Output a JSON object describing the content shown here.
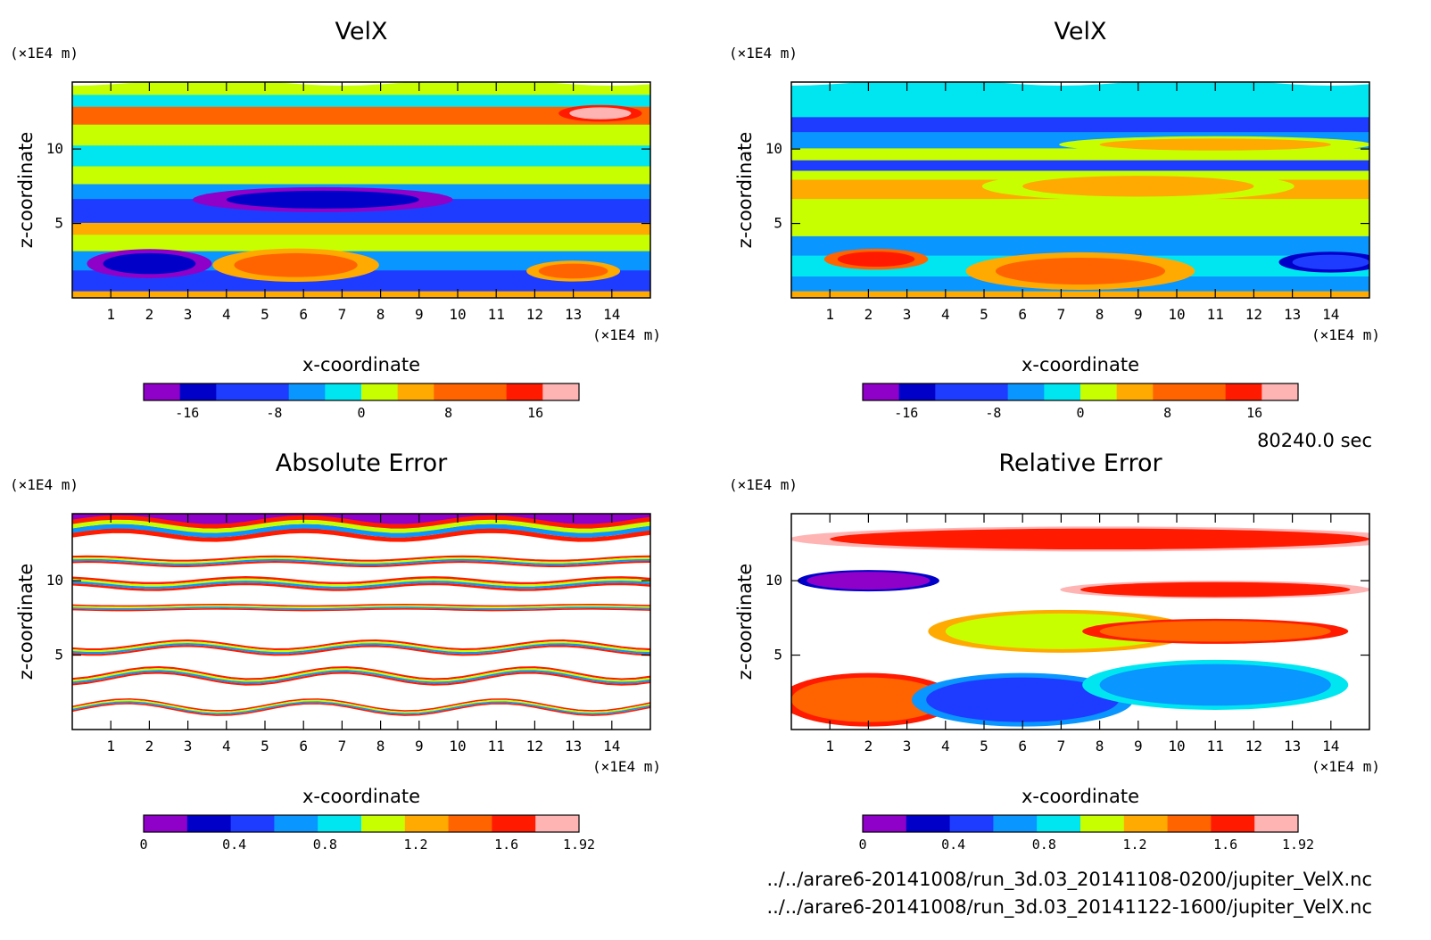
{
  "figure": {
    "time_label": "80240.0 sec",
    "files": [
      "../../arare6-20141008/run_3d.03_20141108-0200/jupiter_VelX.nc",
      "../../arare6-20141008/run_3d.03_20141122-1600/jupiter_VelX.nc"
    ]
  },
  "chart_data": [
    {
      "type": "heatmap",
      "title": "VelX",
      "xlabel": "x-coordinate",
      "ylabel": "z-coordinate",
      "x_unit": "(×1E4 m)",
      "y_unit": "(×1E4 m)",
      "xlim": [
        0,
        15
      ],
      "ylim": [
        0,
        14.5
      ],
      "xticks": [
        "1",
        "2",
        "3",
        "4",
        "5",
        "6",
        "7",
        "8",
        "9",
        "10",
        "11",
        "12",
        "13",
        "14"
      ],
      "yticks": [
        "5",
        "10"
      ],
      "colorbar": {
        "levels": 12,
        "tick_labels": [
          "-16",
          "-8",
          "0",
          "8",
          "16"
        ],
        "tick_values": [
          -16,
          -8,
          0,
          8,
          16
        ],
        "range": [
          -20,
          20
        ],
        "colors": [
          "#8f00c8",
          "#0000c8",
          "#1e3cff",
          "#0a96ff",
          "#00e6f0",
          "#c8ff00",
          "#ffaa00",
          "#ff6400",
          "#ff1a00",
          "#ffb4b4"
        ]
      },
      "bands": [
        {
          "z": [
            0,
            0.8
          ],
          "level": 6
        },
        {
          "z": [
            0.8,
            2.2
          ],
          "level": 2
        },
        {
          "z": [
            2.2,
            3.5
          ],
          "level": 3
        },
        {
          "z": [
            3.5,
            4.6
          ],
          "level": 5
        },
        {
          "z": [
            4.6,
            5.4
          ],
          "level": 6
        },
        {
          "z": [
            5.4,
            7
          ],
          "level": 2
        },
        {
          "z": [
            7,
            8
          ],
          "level": 3
        },
        {
          "z": [
            8,
            9.2
          ],
          "level": 5
        },
        {
          "z": [
            9.2,
            10.6
          ],
          "level": 4
        },
        {
          "z": [
            10.6,
            12
          ],
          "level": 5
        },
        {
          "z": [
            12,
            13.2
          ],
          "level": 7
        },
        {
          "z": [
            13.2,
            14
          ],
          "level": 4
        },
        {
          "z": [
            14,
            14.5
          ],
          "level": 5
        }
      ],
      "blobs": [
        {
          "x": 2,
          "z": 2.3,
          "rx": 1.2,
          "rz": 0.7,
          "level": 1
        },
        {
          "x": 5.8,
          "z": 2.2,
          "rx": 1.6,
          "rz": 0.8,
          "level": 7
        },
        {
          "x": 13,
          "z": 1.8,
          "rx": 0.9,
          "rz": 0.5,
          "level": 7
        },
        {
          "x": 13.7,
          "z": 12.4,
          "rx": 0.8,
          "rz": 0.4,
          "level": 9
        },
        {
          "x": 6.5,
          "z": 6.6,
          "rx": 2.5,
          "rz": 0.6,
          "level": 1
        }
      ]
    },
    {
      "type": "heatmap",
      "title": "VelX",
      "xlabel": "x-coordinate",
      "ylabel": "z-coordinate",
      "x_unit": "(×1E4 m)",
      "y_unit": "(×1E4 m)",
      "xlim": [
        0,
        15
      ],
      "ylim": [
        0,
        14.5
      ],
      "xticks": [
        "1",
        "2",
        "3",
        "4",
        "5",
        "6",
        "7",
        "8",
        "9",
        "10",
        "11",
        "12",
        "13",
        "14"
      ],
      "yticks": [
        "5",
        "10"
      ],
      "colorbar": {
        "levels": 12,
        "tick_labels": [
          "-16",
          "-8",
          "0",
          "8",
          "16"
        ],
        "tick_values": [
          -16,
          -8,
          0,
          8,
          16
        ],
        "range": [
          -20,
          20
        ],
        "colors": [
          "#8f00c8",
          "#0000c8",
          "#1e3cff",
          "#0a96ff",
          "#00e6f0",
          "#c8ff00",
          "#ffaa00",
          "#ff6400",
          "#ff1a00",
          "#ffb4b4"
        ]
      },
      "bands": [
        {
          "z": [
            0,
            0.8
          ],
          "level": 6
        },
        {
          "z": [
            0.8,
            1.8
          ],
          "level": 3
        },
        {
          "z": [
            1.8,
            3.2
          ],
          "level": 4
        },
        {
          "z": [
            3.2,
            4.5
          ],
          "level": 3
        },
        {
          "z": [
            4.5,
            7
          ],
          "level": 5
        },
        {
          "z": [
            7,
            8.3
          ],
          "level": 6
        },
        {
          "z": [
            8.3,
            8.9
          ],
          "level": 5
        },
        {
          "z": [
            8.9,
            9.6
          ],
          "level": 2
        },
        {
          "z": [
            9.6,
            10.4
          ],
          "level": 5
        },
        {
          "z": [
            10.4,
            11.5
          ],
          "level": 3
        },
        {
          "z": [
            11.5,
            12.5
          ],
          "level": 2
        },
        {
          "z": [
            12.5,
            13.3
          ],
          "level": 4
        },
        {
          "z": [
            13.3,
            14.5
          ],
          "level": 4
        }
      ],
      "blobs": [
        {
          "x": 7.5,
          "z": 1.8,
          "rx": 2.2,
          "rz": 0.9,
          "level": 7
        },
        {
          "x": 2.2,
          "z": 2.6,
          "rx": 1,
          "rz": 0.5,
          "level": 8
        },
        {
          "x": 14,
          "z": 2.4,
          "rx": 1,
          "rz": 0.5,
          "level": 2
        },
        {
          "x": 9,
          "z": 7.5,
          "rx": 3,
          "rz": 0.7,
          "level": 6
        },
        {
          "x": 11,
          "z": 10.3,
          "rx": 3,
          "rz": 0.4,
          "level": 6
        }
      ]
    },
    {
      "type": "heatmap",
      "title": "Absolute Error",
      "xlabel": "x-coordinate",
      "ylabel": "z-coordinate",
      "x_unit": "(×1E4 m)",
      "y_unit": "(×1E4 m)",
      "xlim": [
        0,
        15
      ],
      "ylim": [
        0,
        14.5
      ],
      "xticks": [
        "1",
        "2",
        "3",
        "4",
        "5",
        "6",
        "7",
        "8",
        "9",
        "10",
        "11",
        "12",
        "13",
        "14"
      ],
      "yticks": [
        "5",
        "10"
      ],
      "colorbar": {
        "levels": 10,
        "tick_labels": [
          "0",
          "0.4",
          "0.8",
          "1.2",
          "1.6",
          "1.92"
        ],
        "tick_values": [
          0,
          0.4,
          0.8,
          1.2,
          1.6,
          1.92
        ],
        "range": [
          0,
          1.92
        ],
        "colors": [
          "#8f00c8",
          "#0000c8",
          "#1e3cff",
          "#0a96ff",
          "#00e6f0",
          "#c8ff00",
          "#ffaa00",
          "#ff6400",
          "#ff1a00",
          "#ffb4b4"
        ]
      },
      "lines": [
        {
          "z": 13.5,
          "amp": 0.3,
          "width": 0.6
        },
        {
          "z": 11.3,
          "amp": 0.15,
          "width": 0.25
        },
        {
          "z": 9.8,
          "amp": 0.2,
          "width": 0.3
        },
        {
          "z": 8.2,
          "amp": 0.05,
          "width": 0.2
        },
        {
          "z": 5.5,
          "amp": 0.3,
          "width": 0.25
        },
        {
          "z": 3.6,
          "amp": 0.4,
          "width": 0.25
        },
        {
          "z": 1.5,
          "amp": 0.4,
          "width": 0.2
        }
      ],
      "top_band": {
        "z": [
          13.8,
          14.5
        ],
        "level": 0
      }
    },
    {
      "type": "heatmap",
      "title": "Relative Error",
      "xlabel": "x-coordinate",
      "ylabel": "z-coordinate",
      "x_unit": "(×1E4 m)",
      "y_unit": "(×1E4 m)",
      "xlim": [
        0,
        15
      ],
      "ylim": [
        0,
        14.5
      ],
      "xticks": [
        "1",
        "2",
        "3",
        "4",
        "5",
        "6",
        "7",
        "8",
        "9",
        "10",
        "11",
        "12",
        "13",
        "14"
      ],
      "yticks": [
        "5",
        "10"
      ],
      "colorbar": {
        "levels": 10,
        "tick_labels": [
          "0",
          "0.4",
          "0.8",
          "1.2",
          "1.6",
          "1.92"
        ],
        "tick_values": [
          0,
          0.4,
          0.8,
          1.2,
          1.6,
          1.92
        ],
        "range": [
          0,
          1.92
        ],
        "colors": [
          "#8f00c8",
          "#0000c8",
          "#1e3cff",
          "#0a96ff",
          "#00e6f0",
          "#c8ff00",
          "#ffaa00",
          "#ff6400",
          "#ff1a00",
          "#ffb4b4"
        ]
      },
      "patches": [
        {
          "x": 2,
          "z": 2,
          "rx": 2,
          "rz": 1.5,
          "level": 7
        },
        {
          "x": 6,
          "z": 2,
          "rx": 2.5,
          "rz": 1.5,
          "level": 2
        },
        {
          "x": 11,
          "z": 3,
          "rx": 3,
          "rz": 1.4,
          "level": 3
        },
        {
          "x": 7,
          "z": 6.6,
          "rx": 3,
          "rz": 1.2,
          "level": 5
        },
        {
          "x": 11,
          "z": 6.6,
          "rx": 3,
          "rz": 0.7,
          "level": 7
        },
        {
          "x": 2,
          "z": 10,
          "rx": 1.6,
          "rz": 0.6,
          "level": 0
        },
        {
          "x": 8,
          "z": 12.8,
          "rx": 7,
          "rz": 0.7,
          "level": 8
        },
        {
          "x": 11,
          "z": 9.4,
          "rx": 3.5,
          "rz": 0.5,
          "level": 8
        }
      ]
    }
  ]
}
